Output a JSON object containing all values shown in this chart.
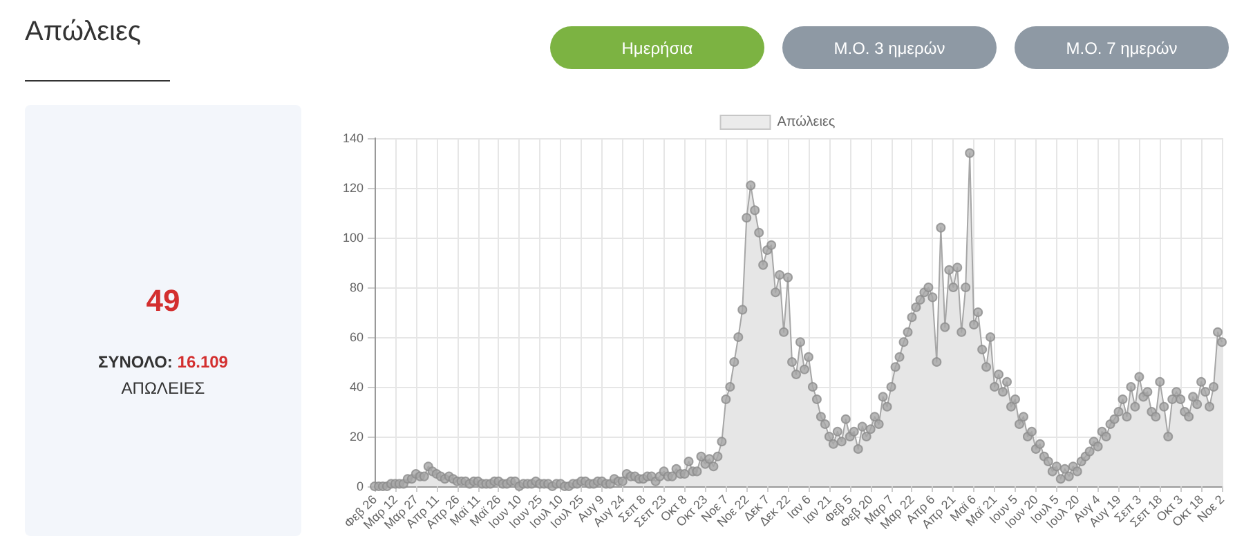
{
  "chart_data": {
    "type": "area",
    "title": "Απώλειες",
    "annotations": [
      "Ημερήσια",
      "Μ.Ο. 3 ημερών",
      "Μ.Ο. 7 ημερών",
      "49",
      "ΣΥΝΟΛΟ:",
      "16.109",
      "ΑΠΩΛΕΙΕΣ"
    ],
    "categories": [
      "Φεβ 26",
      null,
      null,
      null,
      null,
      "Μαρ 12",
      null,
      null,
      null,
      null,
      "Μαρ 27",
      null,
      null,
      null,
      null,
      "Απρ 11",
      null,
      null,
      null,
      null,
      "Απρ 26",
      null,
      null,
      null,
      null,
      "Μαϊ 11",
      null,
      null,
      null,
      null,
      "Μαϊ 26",
      null,
      null,
      null,
      null,
      "Ιουν 10",
      null,
      null,
      null,
      null,
      "Ιουν 25",
      null,
      null,
      null,
      null,
      "Ιουλ 10",
      null,
      null,
      null,
      null,
      "Ιουλ 25",
      null,
      null,
      null,
      null,
      "Αυγ 9",
      null,
      null,
      null,
      null,
      "Αυγ 24",
      null,
      null,
      null,
      null,
      "Σεπ 8",
      null,
      null,
      null,
      null,
      "Σεπ 23",
      null,
      null,
      null,
      null,
      "Οκτ 8",
      null,
      null,
      null,
      null,
      "Οκτ 23",
      null,
      null,
      null,
      null,
      "Νοε 7",
      null,
      null,
      null,
      null,
      "Νοε 22",
      null,
      null,
      null,
      null,
      "Δεκ 7",
      null,
      null,
      null,
      null,
      "Δεκ 22",
      null,
      null,
      null,
      null,
      "Ιαν 6",
      null,
      null,
      null,
      null,
      "Ιαν 21",
      null,
      null,
      null,
      null,
      "Φεβ 5",
      null,
      null,
      null,
      null,
      "Φεβ 20",
      null,
      null,
      null,
      null,
      "Μαρ 7",
      null,
      null,
      null,
      null,
      "Μαρ 22",
      null,
      null,
      null,
      null,
      "Απρ 6",
      null,
      null,
      null,
      null,
      "Απρ 21",
      null,
      null,
      null,
      null,
      "Μαϊ 6",
      null,
      null,
      null,
      null,
      "Μαϊ 21",
      null,
      null,
      null,
      null,
      "Ιουν 5",
      null,
      null,
      null,
      null,
      "Ιουν 20",
      null,
      null,
      null,
      null,
      "Ιουλ 5",
      null,
      null,
      null,
      null,
      "Ιουλ 20",
      null,
      null,
      null,
      null,
      "Αυγ 4",
      null,
      null,
      null,
      null,
      "Αυγ 19",
      null,
      null,
      null,
      null,
      "Σεπ 3",
      null,
      null,
      null,
      null,
      "Σεπ 18",
      null,
      null,
      null,
      null,
      "Οκτ 3",
      null,
      null,
      null,
      null,
      "Οκτ 18",
      null,
      null,
      null,
      null,
      "Νοε 2"
    ],
    "series": [
      {
        "name": "Απώλειες",
        "color": "#e6e6e6",
        "values": [
          0,
          0,
          0,
          0,
          1,
          1,
          1,
          1,
          3,
          3,
          5,
          4,
          4,
          8,
          6,
          5,
          4,
          3,
          4,
          3,
          2,
          2,
          2,
          1,
          2,
          2,
          1,
          1,
          1,
          2,
          2,
          1,
          1,
          2,
          2,
          0,
          1,
          1,
          1,
          2,
          1,
          1,
          1,
          0,
          1,
          1,
          0,
          0,
          1,
          1,
          2,
          2,
          1,
          1,
          2,
          2,
          1,
          1,
          3,
          2,
          2,
          5,
          4,
          4,
          3,
          3,
          4,
          4,
          2,
          4,
          6,
          4,
          4,
          7,
          5,
          5,
          10,
          6,
          6,
          12,
          9,
          11,
          8,
          12,
          18,
          35,
          40,
          50,
          60,
          71,
          108,
          121,
          111,
          102,
          89,
          95,
          97,
          78,
          85,
          62,
          84,
          50,
          45,
          58,
          47,
          52,
          40,
          35,
          28,
          25,
          20,
          17,
          22,
          18,
          27,
          20,
          22,
          15,
          24,
          20,
          23,
          28,
          25,
          36,
          32,
          40,
          48,
          52,
          58,
          62,
          68,
          72,
          75,
          78,
          80,
          76,
          50,
          104,
          64,
          87,
          80,
          88,
          62,
          80,
          134,
          65,
          70,
          55,
          48,
          60,
          40,
          45,
          38,
          42,
          32,
          35,
          25,
          28,
          20,
          22,
          15,
          17,
          12,
          10,
          6,
          8,
          3,
          7,
          4,
          8,
          6,
          10,
          12,
          14,
          18,
          16,
          22,
          20,
          25,
          27,
          30,
          35,
          28,
          40,
          32,
          44,
          36,
          38,
          30,
          28,
          42,
          32,
          20,
          35,
          38,
          35,
          30,
          28,
          36,
          33,
          42,
          38,
          32,
          40,
          62,
          58
        ]
      }
    ],
    "ylim": [
      0,
      140
    ],
    "yticks": [
      0,
      20,
      40,
      60,
      80,
      100,
      120,
      140
    ],
    "grid": true,
    "legend": "top",
    "marker": "circle"
  }
}
